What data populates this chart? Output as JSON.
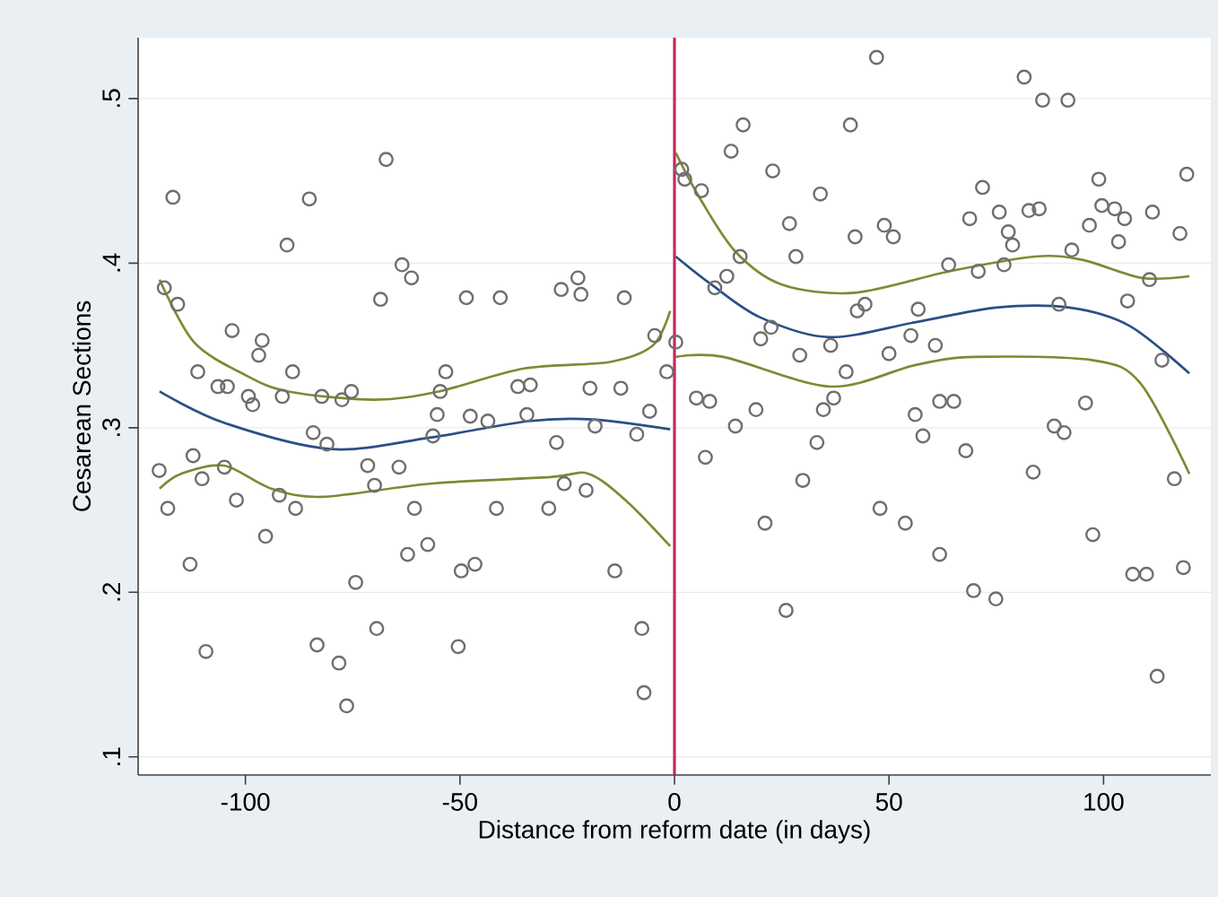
{
  "chart_data": {
    "type": "scatter",
    "xlabel": "Distance from reform date (in days)",
    "ylabel": "Cesarean Sections",
    "xlim": [
      -125,
      125
    ],
    "ylim": [
      0.089,
      0.537
    ],
    "xticks": [
      -100,
      -50,
      0,
      50,
      100
    ],
    "yticks": [
      {
        "value": 0.1,
        "label": ".1"
      },
      {
        "value": 0.2,
        "label": ".2"
      },
      {
        "value": 0.3,
        "label": ".3"
      },
      {
        "value": 0.4,
        "label": ".4"
      },
      {
        "value": 0.5,
        "label": ".5"
      }
    ],
    "grid": "y",
    "ref_lines": [
      {
        "axis": "x",
        "value": 0,
        "color": "#c8285a"
      }
    ],
    "series": [
      {
        "marker": "circle",
        "color": "#6e6e6e",
        "x": [
          -118.9,
          -116.9,
          -115.8,
          -103.1,
          -96.1,
          -96.9,
          -90.3,
          -85.1,
          -67.2,
          -68.5,
          -63.5,
          -61.3,
          -48.5,
          -40.6,
          -26.4,
          -22.5,
          -21.8,
          -11.7,
          -4.6,
          -111.1,
          -106.4,
          -104.2,
          -99.3,
          -98.3,
          -89.0,
          -91.4,
          -82.2,
          -77.5,
          -75.3,
          -84.2,
          -81.0,
          -53.3,
          -54.6,
          -55.3,
          -47.6,
          -43.5,
          -56.3,
          -36.5,
          -33.6,
          -34.4,
          -19.7,
          -12.5,
          -18.5,
          -27.5,
          -8.8,
          -5.8,
          -1.8,
          -120.1,
          -118.1,
          -112.2,
          -110.1,
          -104.9,
          -102.1,
          -112.9,
          -95.3,
          -92.1,
          -88.3,
          -71.5,
          -69.9,
          -64.2,
          -60.6,
          -62.2,
          -57.5,
          -74.3,
          -49.7,
          -46.5,
          -41.5,
          -29.3,
          -25.7,
          -20.6,
          -13.9,
          -7.6,
          -69.4,
          -109.2,
          -83.3,
          -78.2,
          -50.4,
          -76.4,
          -7.1,
          0.3,
          1.7,
          2.4,
          6.3,
          13.2,
          16.0,
          22.9,
          26.8,
          28.3,
          34.0,
          41.0,
          47.1,
          42.1,
          48.9,
          51.0,
          15.3,
          12.2,
          9.4,
          20.1,
          22.5,
          29.2,
          36.4,
          42.6,
          44.4,
          50.0,
          56.8,
          55.1,
          60.8,
          63.9,
          68.8,
          70.8,
          71.8,
          75.7,
          76.8,
          77.8,
          78.8,
          81.5,
          82.6,
          85.0,
          85.8,
          91.7,
          92.6,
          89.6,
          96.7,
          98.9,
          99.6,
          102.6,
          104.9,
          103.5,
          105.6,
          110.7,
          111.4,
          117.8,
          119.4,
          113.6,
          40.0,
          5.1,
          8.2,
          14.2,
          19.0,
          7.2,
          34.7,
          37.1,
          33.2,
          29.9,
          21.1,
          26.0,
          47.9,
          53.8,
          56.1,
          57.9,
          61.8,
          65.1,
          67.9,
          61.8,
          69.7,
          74.9,
          83.6,
          88.5,
          90.8,
          95.8,
          97.5,
          106.8,
          110.0,
          116.5,
          118.6,
          112.5
        ],
        "values": [
          0.385,
          0.44,
          0.375,
          0.359,
          0.353,
          0.344,
          0.411,
          0.439,
          0.463,
          0.378,
          0.399,
          0.391,
          0.379,
          0.379,
          0.384,
          0.391,
          0.381,
          0.379,
          0.356,
          0.334,
          0.325,
          0.325,
          0.319,
          0.314,
          0.334,
          0.319,
          0.319,
          0.317,
          0.322,
          0.297,
          0.29,
          0.334,
          0.322,
          0.308,
          0.307,
          0.304,
          0.295,
          0.325,
          0.326,
          0.308,
          0.324,
          0.324,
          0.301,
          0.291,
          0.296,
          0.31,
          0.334,
          0.274,
          0.251,
          0.283,
          0.269,
          0.276,
          0.256,
          0.217,
          0.234,
          0.259,
          0.251,
          0.277,
          0.265,
          0.276,
          0.251,
          0.223,
          0.229,
          0.206,
          0.213,
          0.217,
          0.251,
          0.251,
          0.266,
          0.262,
          0.213,
          0.178,
          0.178,
          0.164,
          0.168,
          0.157,
          0.167,
          0.131,
          0.139,
          0.352,
          0.457,
          0.451,
          0.444,
          0.468,
          0.484,
          0.456,
          0.424,
          0.404,
          0.442,
          0.484,
          0.525,
          0.416,
          0.423,
          0.416,
          0.404,
          0.392,
          0.385,
          0.354,
          0.361,
          0.344,
          0.35,
          0.371,
          0.375,
          0.345,
          0.372,
          0.356,
          0.35,
          0.399,
          0.427,
          0.395,
          0.446,
          0.431,
          0.399,
          0.419,
          0.411,
          0.513,
          0.432,
          0.433,
          0.499,
          0.499,
          0.408,
          0.375,
          0.423,
          0.451,
          0.435,
          0.433,
          0.427,
          0.413,
          0.377,
          0.39,
          0.431,
          0.418,
          0.454,
          0.341,
          0.334,
          0.318,
          0.316,
          0.301,
          0.311,
          0.282,
          0.311,
          0.318,
          0.291,
          0.268,
          0.242,
          0.189,
          0.251,
          0.242,
          0.308,
          0.295,
          0.316,
          0.316,
          0.286,
          0.223,
          0.201,
          0.196,
          0.273,
          0.301,
          0.297,
          0.315,
          0.235,
          0.211,
          0.211,
          0.269,
          0.215,
          0.149
        ]
      },
      {
        "type": "line",
        "marker": "none",
        "color": "#2b4f86",
        "x": [
          -120,
          -105,
          -80,
          -57,
          -34,
          -19,
          -1
        ],
        "values": [
          0.322,
          0.303,
          0.287,
          0.294,
          0.304,
          0.305,
          0.299
        ]
      },
      {
        "type": "line",
        "marker": "none",
        "color": "#7d8a32",
        "x": [
          -120,
          -112,
          -100,
          -90,
          -70,
          -55,
          -35,
          -15,
          -5,
          -1
        ],
        "values": [
          0.39,
          0.352,
          0.332,
          0.322,
          0.317,
          0.322,
          0.336,
          0.34,
          0.35,
          0.371
        ]
      },
      {
        "type": "line",
        "marker": "none",
        "color": "#7d8a32",
        "x": [
          -120,
          -115,
          -105,
          -94,
          -82,
          -57,
          -29,
          -20,
          -11,
          -1
        ],
        "values": [
          0.263,
          0.272,
          0.277,
          0.263,
          0.258,
          0.266,
          0.27,
          0.272,
          0.255,
          0.228
        ]
      },
      {
        "type": "line",
        "marker": "none",
        "color": "#2b4f86",
        "x": [
          0.3,
          8.6,
          20,
          36,
          56,
          75,
          92,
          106,
          120
        ],
        "values": [
          0.404,
          0.387,
          0.367,
          0.355,
          0.364,
          0.373,
          0.373,
          0.362,
          0.333
        ]
      },
      {
        "type": "line",
        "marker": "none",
        "color": "#7d8a32",
        "x": [
          0.3,
          5.8,
          14.2,
          25,
          42,
          64,
          84,
          95,
          109,
          120
        ],
        "values": [
          0.467,
          0.44,
          0.407,
          0.387,
          0.382,
          0.395,
          0.404,
          0.402,
          0.391,
          0.392
        ]
      },
      {
        "type": "line",
        "marker": "none",
        "color": "#7d8a32",
        "x": [
          0.3,
          11.4,
          36.4,
          56,
          70,
          97.5,
          108.6,
          120
        ],
        "values": [
          0.343,
          0.343,
          0.325,
          0.338,
          0.343,
          0.341,
          0.327,
          0.272
        ]
      }
    ]
  }
}
